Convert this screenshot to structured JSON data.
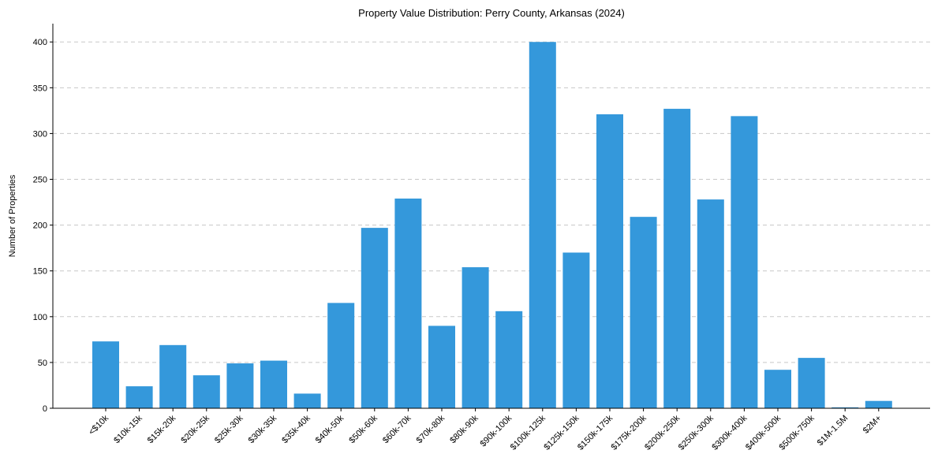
{
  "chart_data": {
    "type": "bar",
    "title": "Property Value Distribution: Perry County, Arkansas (2024)",
    "xlabel": "",
    "ylabel": "Number of Properties",
    "ylim": [
      0,
      420
    ],
    "yticks": [
      0,
      50,
      100,
      150,
      200,
      250,
      300,
      350,
      400
    ],
    "grid": "y-dashed",
    "bar_color": "#3498db",
    "categories": [
      "<$10k",
      "$10k-15k",
      "$15k-20k",
      "$20k-25k",
      "$25k-30k",
      "$30k-35k",
      "$35k-40k",
      "$40k-50k",
      "$50k-60k",
      "$60k-70k",
      "$70k-80k",
      "$80k-90k",
      "$90k-100k",
      "$100k-125k",
      "$125k-150k",
      "$150k-175k",
      "$175k-200k",
      "$200k-250k",
      "$250k-300k",
      "$300k-400k",
      "$400k-500k",
      "$500k-750k",
      "$1M-1.5M",
      "$2M+"
    ],
    "values": [
      73,
      24,
      69,
      36,
      49,
      52,
      16,
      115,
      197,
      229,
      90,
      154,
      106,
      400,
      170,
      321,
      209,
      327,
      228,
      319,
      42,
      55,
      1,
      8
    ]
  }
}
